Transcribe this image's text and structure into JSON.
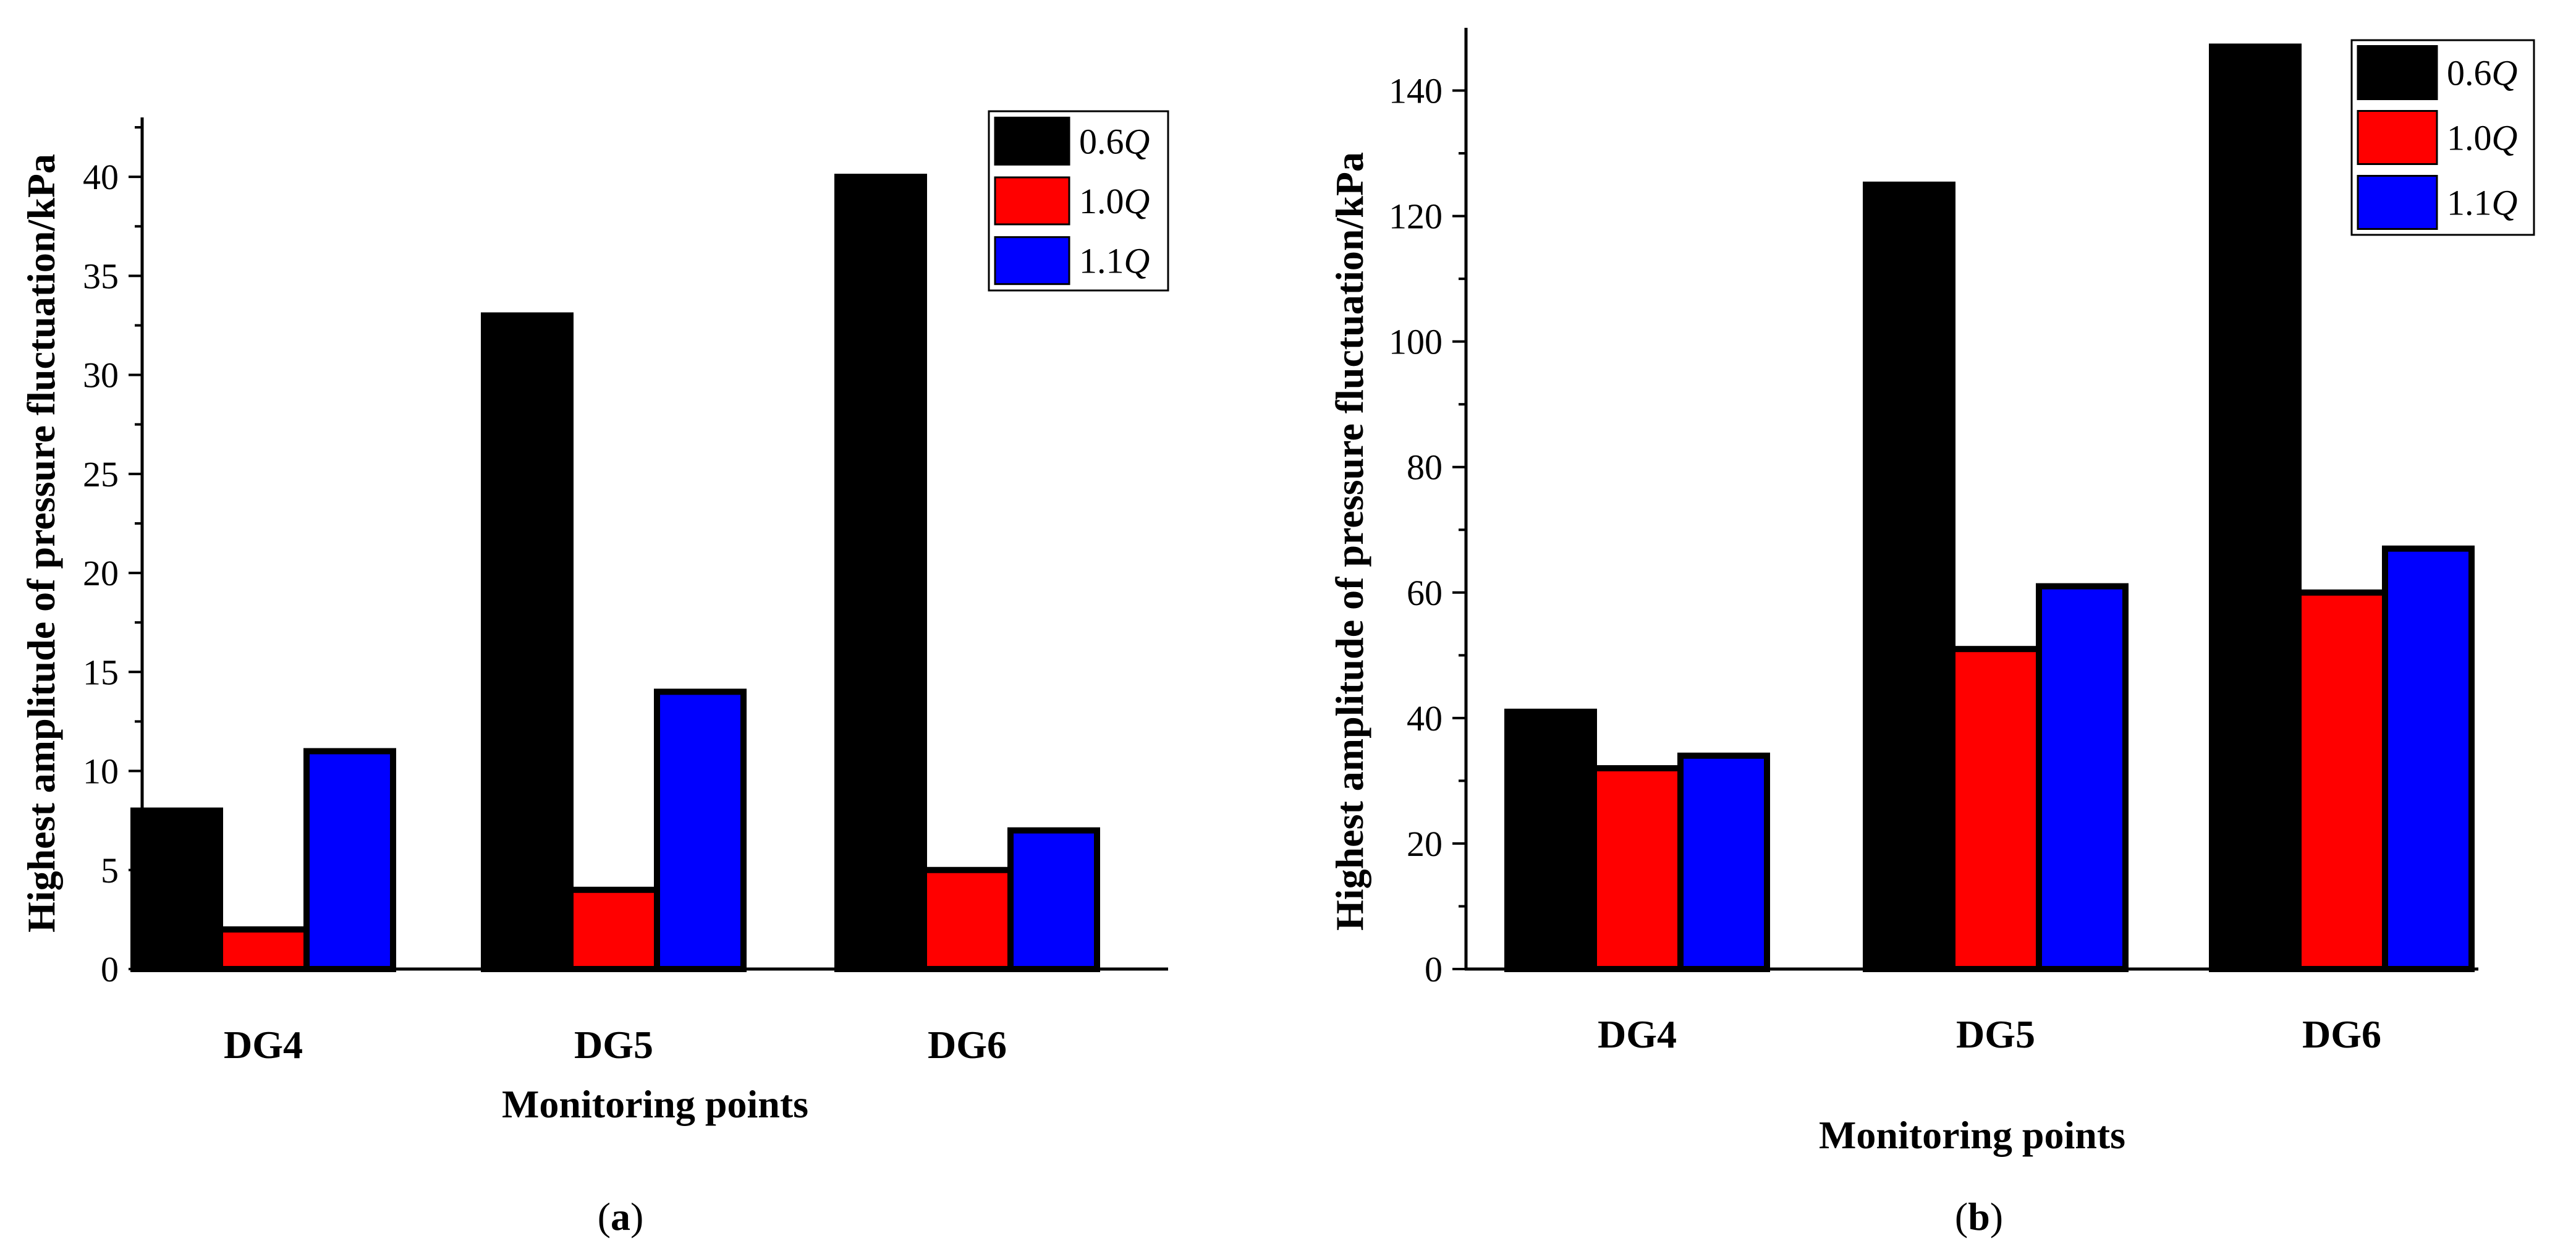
{
  "chart_data": [
    {
      "type": "bar",
      "panel": "(a)",
      "panel_letter": "a",
      "categories": [
        "DG4",
        "DG5",
        "DG6"
      ],
      "series": [
        {
          "name": "0.6Q",
          "value_label": "0.6",
          "unit_label": "Q",
          "color": "#000000",
          "values": [
            8,
            33,
            40
          ]
        },
        {
          "name": "1.0Q",
          "value_label": "1.0",
          "unit_label": "Q",
          "color": "#ff0000",
          "values": [
            2,
            4,
            5
          ]
        },
        {
          "name": "1.1Q",
          "value_label": "1.1",
          "unit_label": "Q",
          "color": "#0000ff",
          "values": [
            11,
            14,
            7
          ]
        }
      ],
      "xlabel": "Monitoring points",
      "ylabel": "Highest amplitude of pressure fluctuation/kPa",
      "ylim": [
        0,
        43
      ],
      "yticks": [
        0,
        5,
        10,
        15,
        20,
        25,
        30,
        35,
        40
      ],
      "legend": "top-right",
      "grid": false
    },
    {
      "type": "bar",
      "panel": "(b)",
      "panel_letter": "b",
      "categories": [
        "DG4",
        "DG5",
        "DG6"
      ],
      "series": [
        {
          "name": "0.6Q",
          "value_label": "0.6",
          "unit_label": "Q",
          "color": "#000000",
          "values": [
            41,
            125,
            147
          ]
        },
        {
          "name": "1.0Q",
          "value_label": "1.0",
          "unit_label": "Q",
          "color": "#ff0000",
          "values": [
            32,
            51,
            60
          ]
        },
        {
          "name": "1.1Q",
          "value_label": "1.1",
          "unit_label": "Q",
          "color": "#0000ff",
          "values": [
            34,
            61,
            67
          ]
        }
      ],
      "xlabel": "Monitoring points",
      "ylabel": "Highest amplitude of pressure fluctuation/kPa",
      "ylim": [
        0,
        150
      ],
      "yticks": [
        0,
        20,
        40,
        60,
        80,
        100,
        120,
        140
      ],
      "legend": "top-right",
      "grid": false
    }
  ]
}
